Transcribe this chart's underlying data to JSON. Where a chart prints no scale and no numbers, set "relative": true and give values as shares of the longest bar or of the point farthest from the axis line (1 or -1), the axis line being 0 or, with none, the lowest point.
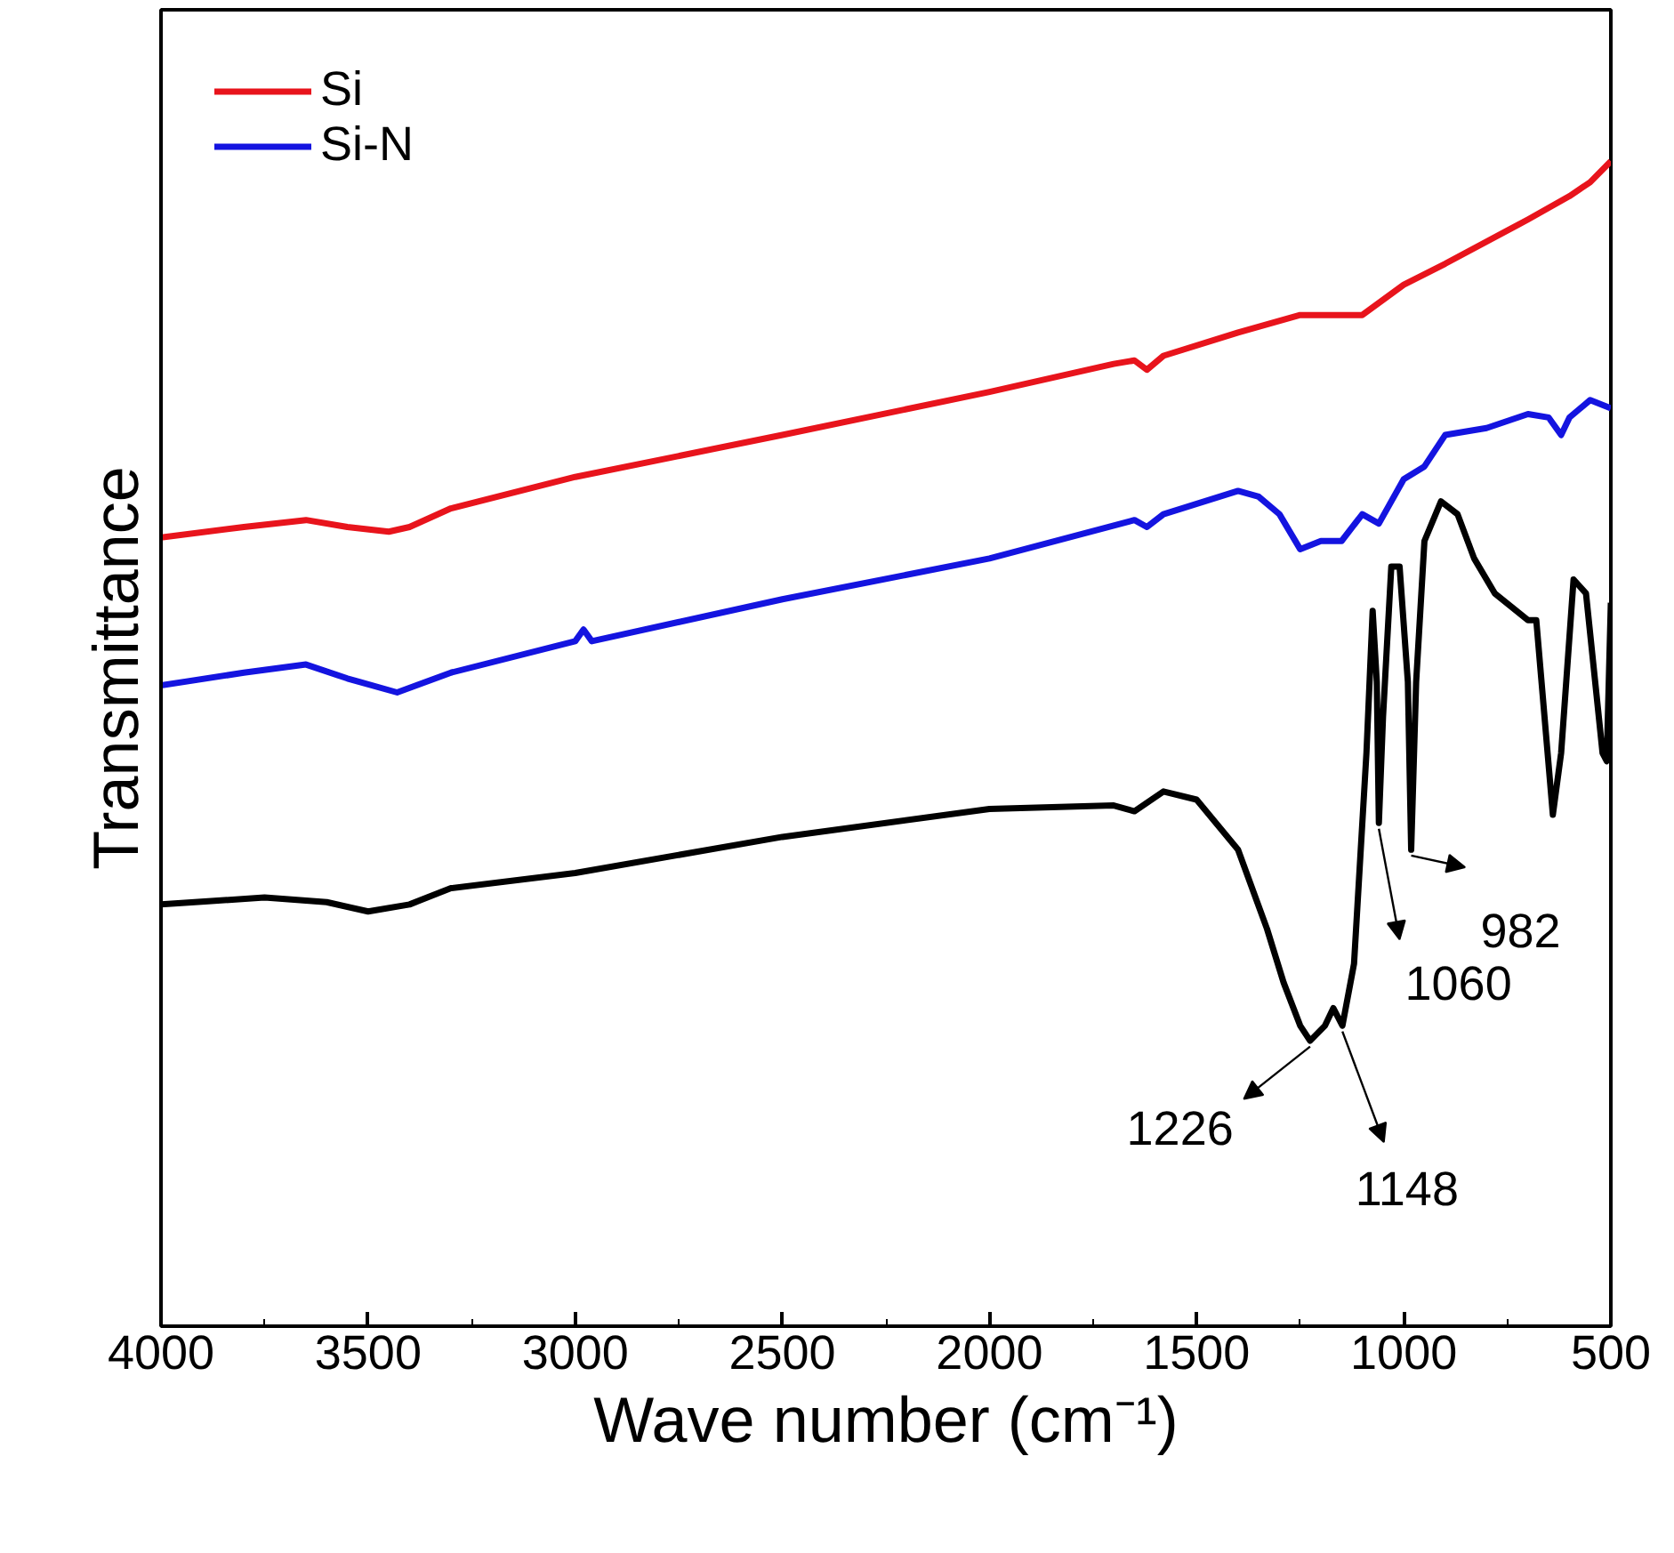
{
  "chart_data": {
    "type": "line",
    "relative": true,
    "xlabel": "Wave number (cm⁻¹)",
    "ylabel": "Transmittance",
    "xlim": [
      4000,
      500
    ],
    "xticks": [
      4000,
      3500,
      3000,
      2500,
      2000,
      1500,
      1000,
      500
    ],
    "grid": false,
    "legend": "top left",
    "tick_labels": "x",
    "line_style": "solid",
    "marker": "none",
    "series": [
      {
        "name": "Si",
        "color": "#e8141c",
        "x": [
          4000,
          3800,
          3650,
          3550,
          3450,
          3400,
          3300,
          3000,
          2500,
          2000,
          1700,
          1650,
          1620,
          1580,
          1400,
          1250,
          1100,
          1000,
          900,
          700,
          600,
          550,
          500
        ],
        "values": [
          0.677,
          0.686,
          0.692,
          0.686,
          0.682,
          0.686,
          0.702,
          0.729,
          0.765,
          0.802,
          0.826,
          0.829,
          0.821,
          0.833,
          0.853,
          0.868,
          0.868,
          0.894,
          0.912,
          0.95,
          0.97,
          0.982,
          1
        ]
      },
      {
        "name": "Si-N",
        "color": "#1414e0",
        "x": [
          4000,
          3800,
          3650,
          3550,
          3430,
          3300,
          3000,
          2980,
          2960,
          2500,
          2000,
          1650,
          1620,
          1580,
          1400,
          1350,
          1300,
          1250,
          1200,
          1150,
          1100,
          1060,
          1000,
          950,
          900,
          800,
          700,
          650,
          620,
          600,
          550,
          500
        ],
        "values": [
          0.55,
          0.561,
          0.568,
          0.556,
          0.544,
          0.561,
          0.588,
          0.598,
          0.588,
          0.624,
          0.659,
          0.692,
          0.686,
          0.697,
          0.717,
          0.712,
          0.697,
          0.667,
          0.674,
          0.674,
          0.697,
          0.689,
          0.727,
          0.738,
          0.765,
          0.771,
          0.783,
          0.78,
          0.765,
          0.78,
          0.795,
          0.788
        ]
      },
      {
        "color": "#000000",
        "x": [
          4000,
          3750,
          3600,
          3500,
          3400,
          3300,
          3000,
          2500,
          2000,
          1700,
          1650,
          1580,
          1500,
          1400,
          1330,
          1290,
          1250,
          1226,
          1190,
          1170,
          1148,
          1120,
          1090,
          1075,
          1065,
          1060,
          1050,
          1030,
          1010,
          990,
          982,
          970,
          950,
          910,
          870,
          830,
          780,
          700,
          680,
          640,
          620,
          590,
          560,
          520,
          510,
          500
        ],
        "values": [
          0.362,
          0.368,
          0.364,
          0.356,
          0.362,
          0.376,
          0.389,
          0.42,
          0.444,
          0.447,
          0.442,
          0.459,
          0.452,
          0.409,
          0.341,
          0.295,
          0.258,
          0.245,
          0.258,
          0.273,
          0.258,
          0.311,
          0.492,
          0.614,
          0.553,
          0.432,
          0.523,
          0.652,
          0.652,
          0.553,
          0.409,
          0.553,
          0.674,
          0.708,
          0.697,
          0.659,
          0.629,
          0.606,
          0.606,
          0.439,
          0.492,
          0.641,
          0.629,
          0.492,
          0.485,
          0.621
        ]
      }
    ],
    "annotations": [
      {
        "text": "1226",
        "x": 1226,
        "y": 0.245
      },
      {
        "text": "1148",
        "x": 1148,
        "y": 0.258
      },
      {
        "text": "1060",
        "x": 1060,
        "y": 0.432
      },
      {
        "text": "982",
        "x": 982,
        "y": 0.409
      }
    ]
  }
}
